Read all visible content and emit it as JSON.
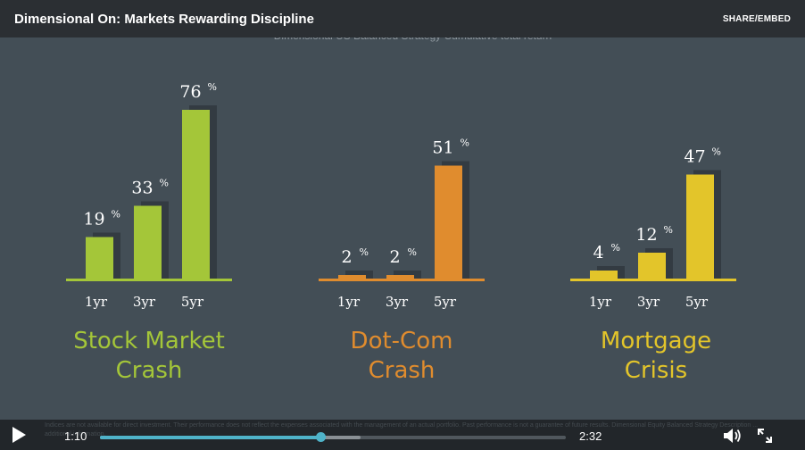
{
  "video": {
    "title": "Dimensional On: Markets Rewarding Discipline",
    "share_label": "SHARE/EMBED"
  },
  "chart_data": {
    "type": "bar",
    "title": "Dimensional US Balanced Strategy Cumulative total return",
    "unit": "%",
    "groups": [
      {
        "name": "Stock Market Crash",
        "name_lines": [
          "Stock Market",
          "Crash"
        ],
        "color": "#a4c639",
        "categories": [
          "1yr",
          "3yr",
          "5yr"
        ],
        "values": [
          19,
          33,
          76
        ]
      },
      {
        "name": "Dot-Com Crash",
        "name_lines": [
          "Dot-Com",
          "Crash"
        ],
        "color": "#e08c2e",
        "categories": [
          "1yr",
          "3yr",
          "5yr"
        ],
        "values": [
          2,
          2,
          51
        ]
      },
      {
        "name": "Mortgage Crisis",
        "name_lines": [
          "Mortgage",
          "Crisis"
        ],
        "color": "#e3c52a",
        "categories": [
          "1yr",
          "3yr",
          "5yr"
        ],
        "values": [
          4,
          12,
          47
        ]
      }
    ]
  },
  "player": {
    "current_time": "1:10",
    "duration": "2:32",
    "progress": 0.475,
    "buffered": 0.56,
    "disclaimer": "Indices are not available for direct investment. Their performance does not reflect the expenses associated with the management of an actual portfolio. Past performance is not a guarantee of future results. Dimensional Equity Balanced Strategy Description ... additional information.",
    "icons": {
      "play": "play-icon",
      "volume": "volume-icon",
      "fullscreen": "fullscreen-icon"
    },
    "accent_color": "#4fb3c9"
  }
}
